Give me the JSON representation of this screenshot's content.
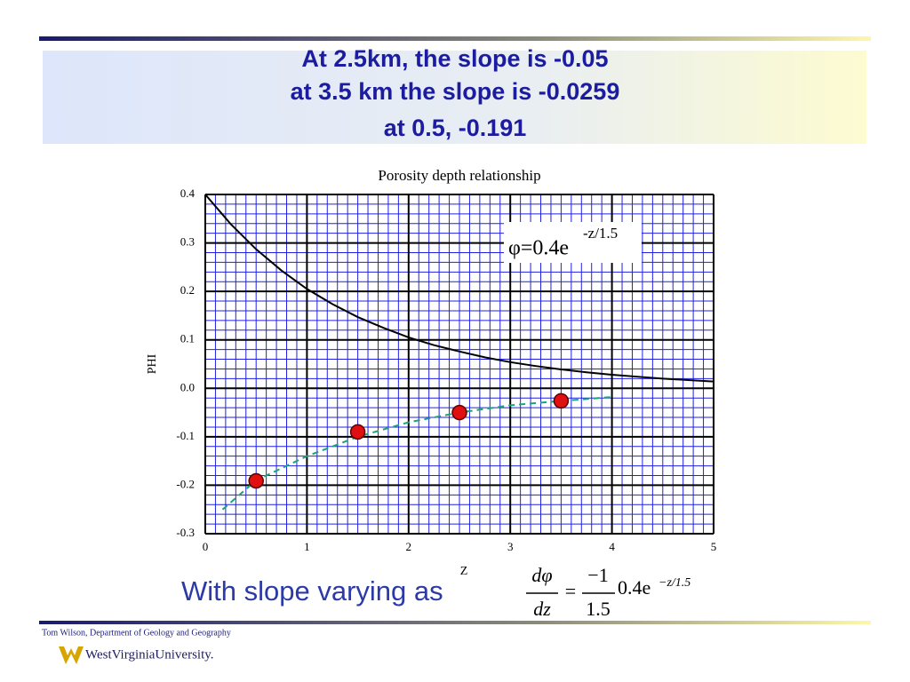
{
  "slide_title": [
    "At 2.5km, the slope is -0.05",
    "at 3.5 km the slope is -0.0259",
    "at 0.5, -0.191"
  ],
  "chart_data": {
    "type": "line",
    "title": "Porosity depth relationship",
    "x_label": "Z",
    "y_label": "PHI",
    "xlim": [
      0,
      5
    ],
    "xticks": [
      0,
      1,
      2,
      3,
      4,
      5
    ],
    "ylim": [
      -0.3,
      0.4
    ],
    "yticks": [
      0.4,
      0.3,
      0.2,
      0.1,
      {
        "value": 0,
        "label": "0.0"
      },
      -0.1,
      -0.2,
      -0.3
    ],
    "grid": true,
    "annotation": {
      "text": "φ=0.4e",
      "superscript": "-z/1.5"
    },
    "series": [
      {
        "color": "#000000",
        "style": "solid",
        "x": [
          0,
          0.25,
          0.5,
          0.75,
          1,
          1.25,
          1.5,
          1.75,
          2,
          2.25,
          2.5,
          2.75,
          3,
          3.25,
          3.5,
          3.75,
          4,
          4.25,
          4.5,
          4.75,
          5
        ],
        "values": [
          0.4,
          0.339,
          0.287,
          0.243,
          0.205,
          0.174,
          0.147,
          0.125,
          0.105,
          0.089,
          0.076,
          0.064,
          0.054,
          0.046,
          0.039,
          0.033,
          0.028,
          0.024,
          0.02,
          0.017,
          0.014
        ]
      },
      {
        "color": "#1aa37a",
        "style": "dashed",
        "x": [
          0.17,
          0.5,
          1,
          1.5,
          2,
          2.5,
          3,
          3.5,
          4
        ],
        "values": [
          -0.25,
          -0.19,
          -0.14,
          -0.1,
          -0.07,
          -0.05,
          -0.035,
          -0.026,
          -0.018
        ]
      },
      {
        "color": "#e01010",
        "style": "markers",
        "x": [
          0.5,
          1.5,
          2.5,
          3.5
        ],
        "values": [
          -0.191,
          -0.09,
          -0.05,
          -0.0259
        ]
      }
    ]
  },
  "caption": "With slope varying as",
  "formula": {
    "numerator": "dφ",
    "denominator": "dz",
    "equals": "=",
    "coef_num": "−1",
    "coef_den": "1.5",
    "factor": "0.4e",
    "exponent": "−z/1.5"
  },
  "footer": {
    "credit": "Tom Wilson, Department of Geology and Geography",
    "logo": "WestVirginiaUniversity."
  }
}
